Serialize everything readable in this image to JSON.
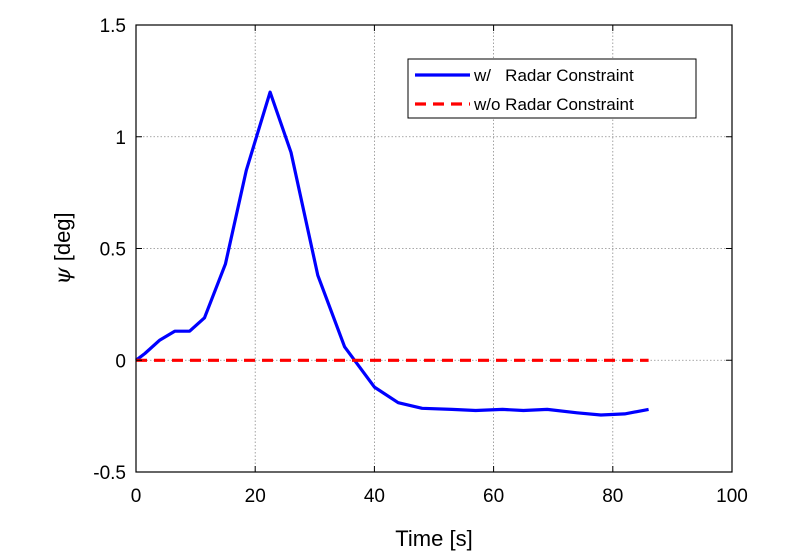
{
  "chart_data": {
    "type": "line",
    "title": "",
    "xlabel": "Time [s]",
    "ylabel_symbol": "ψ",
    "ylabel_unit": " [deg]",
    "xlim": [
      0,
      100
    ],
    "ylim": [
      -0.5,
      1.5
    ],
    "xticks": [
      0,
      20,
      40,
      60,
      80,
      100
    ],
    "yticks": [
      -0.5,
      0,
      0.5,
      1,
      1.5
    ],
    "xtick_labels": [
      "0",
      "20",
      "40",
      "60",
      "80",
      "100"
    ],
    "ytick_labels": [
      "-0.5",
      "0",
      "0.5",
      "1",
      "1.5"
    ],
    "grid": true,
    "legend_placement": "top-right",
    "series": [
      {
        "name": "w/   Radar Constraint",
        "color": "#0000ff",
        "dash": "solid",
        "x": [
          0,
          1.5,
          4,
          6.5,
          9,
          11.5,
          15,
          18.5,
          22.5,
          26,
          30.5,
          35,
          40,
          44,
          48,
          53,
          57,
          61.5,
          65,
          69,
          74,
          78,
          82,
          86
        ],
        "y": [
          0,
          0.03,
          0.09,
          0.13,
          0.13,
          0.19,
          0.43,
          0.85,
          1.2,
          0.93,
          0.38,
          0.06,
          -0.12,
          -0.19,
          -0.215,
          -0.22,
          -0.225,
          -0.22,
          -0.225,
          -0.22,
          -0.235,
          -0.245,
          -0.24,
          -0.22
        ]
      },
      {
        "name": "w/o Radar Constraint",
        "color": "#ff0000",
        "dash": "dashed",
        "x": [
          0,
          86
        ],
        "y": [
          0,
          0
        ]
      }
    ]
  }
}
